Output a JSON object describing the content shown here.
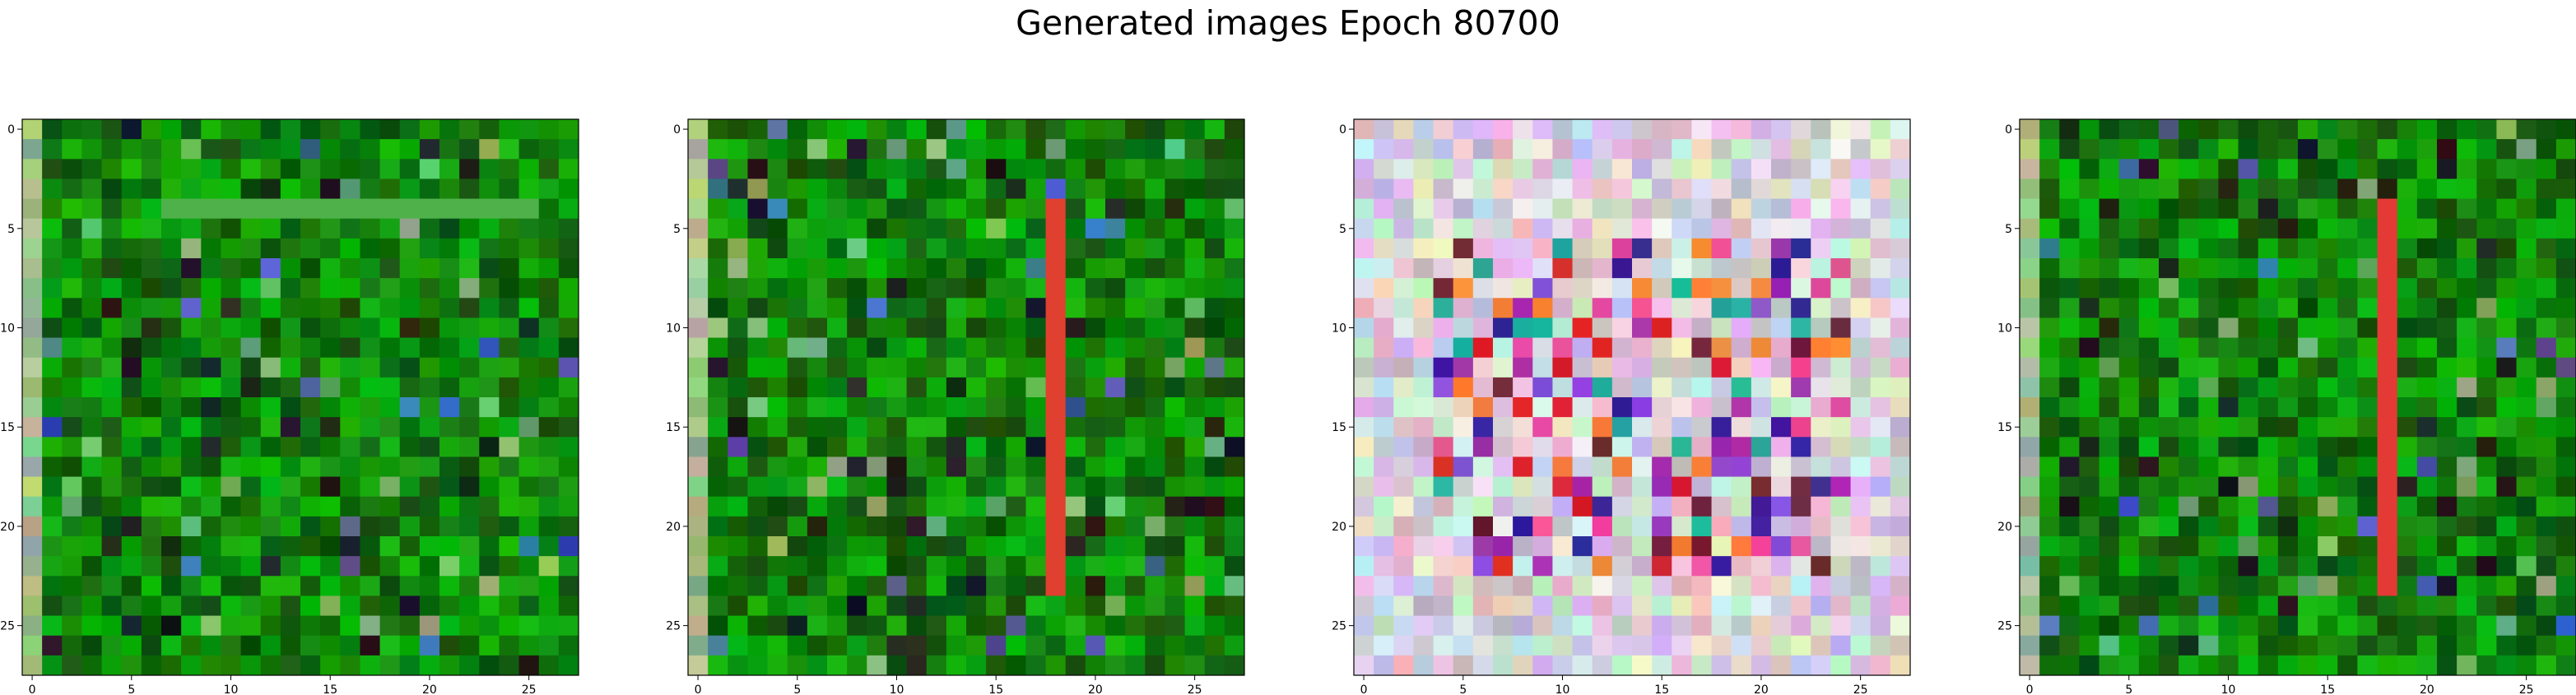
{
  "title": "Generated images Epoch 80700",
  "chart_data": [
    {
      "type": "heatmap",
      "description_of_pixels": "28x28 RGB image, mostly green tones with scattered dark/blue pixels in upper-left region and a lighter horizontal band near row 4",
      "palette_kind": "green",
      "feature": {
        "kind": "hband",
        "row": 4,
        "col_start": 7,
        "col_end": 25,
        "color": "#4fb14a"
      },
      "xticks": [
        0,
        5,
        10,
        15,
        20,
        25
      ],
      "yticks": [
        0,
        5,
        10,
        15,
        20,
        25
      ],
      "xlim": [
        -0.5,
        27.5
      ],
      "ylim": [
        27.5,
        -0.5
      ],
      "seed": 11
    },
    {
      "type": "heatmap",
      "description_of_pixels": "28x28 RGB image, mostly green tones with a vertical red/orange stripe at column 18 from row 4 to row 23 and a pale left edge column",
      "palette_kind": "green",
      "feature": {
        "kind": "vband",
        "col": 18,
        "row_start": 4,
        "row_end": 23,
        "color": "#e0402f"
      },
      "xticks": [
        0,
        5,
        10,
        15,
        20,
        25
      ],
      "yticks": [
        0,
        5,
        10,
        15,
        20,
        25
      ],
      "xlim": [
        -0.5,
        27.5
      ],
      "ylim": [
        27.5,
        -0.5
      ],
      "seed": 23
    },
    {
      "type": "heatmap",
      "description_of_pixels": "28x28 RGB image of multicolored noise, pastel pinks/lavenders/whites with saturated red, purple, blue and orange pixels concentrated in the center",
      "palette_kind": "noise",
      "feature": null,
      "xticks": [
        0,
        5,
        10,
        15,
        20,
        25
      ],
      "yticks": [
        0,
        5,
        10,
        15,
        20,
        25
      ],
      "xlim": [
        -0.5,
        27.5
      ],
      "ylim": [
        27.5,
        -0.5
      ],
      "seed": 37
    },
    {
      "type": "heatmap",
      "description_of_pixels": "28x28 RGB image, mostly green tones with a vertical red stripe at column 18 from row 4 to row 23 and a pale left edge column",
      "palette_kind": "green",
      "feature": {
        "kind": "vband",
        "col": 18,
        "row_start": 4,
        "row_end": 23,
        "color": "#e43a36"
      },
      "xticks": [
        0,
        5,
        10,
        15,
        20,
        25
      ],
      "yticks": [
        0,
        5,
        10,
        15,
        20,
        25
      ],
      "xlim": [
        -0.5,
        27.5
      ],
      "ylim": [
        27.5,
        -0.5
      ],
      "seed": 53
    }
  ]
}
